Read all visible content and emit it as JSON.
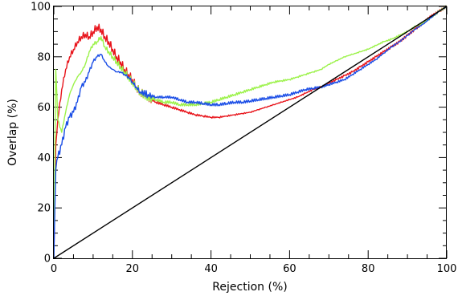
{
  "chart_data": {
    "type": "line",
    "xlabel": "Rejection (%)",
    "ylabel": "Overlap (%)",
    "xlim": [
      0,
      100
    ],
    "ylim": [
      0,
      100
    ],
    "x_ticks": [
      0,
      20,
      40,
      60,
      80,
      100
    ],
    "y_ticks": [
      0,
      20,
      40,
      60,
      80,
      100
    ],
    "x_tick_labels": [
      "0",
      "20",
      "40",
      "60",
      "80",
      "100"
    ],
    "y_tick_labels": [
      "0",
      "20",
      "40",
      "60",
      "80",
      "100"
    ],
    "grid": false,
    "legend": "none",
    "series": [
      {
        "color": "#e8141b",
        "x": [
          0,
          0.5,
          1,
          2,
          3,
          4,
          5,
          6,
          7,
          8,
          9,
          10,
          11,
          12,
          13,
          14,
          15,
          16,
          17,
          18,
          19,
          20,
          21,
          22,
          24,
          26,
          28,
          30,
          32,
          34,
          36,
          38,
          40,
          42,
          44,
          46,
          48,
          50,
          52,
          54,
          56,
          58,
          60,
          62,
          64,
          66,
          68,
          70,
          72,
          74,
          76,
          78,
          80,
          82,
          84,
          86,
          88,
          90,
          92,
          94,
          96,
          98,
          100
        ],
        "y": [
          0,
          45,
          55,
          67,
          75,
          80,
          83,
          86,
          88,
          89,
          88,
          90,
          92,
          91,
          88,
          86,
          83,
          80,
          78,
          75,
          73,
          71,
          68,
          66,
          64,
          62,
          61,
          60,
          59,
          58,
          57,
          56.5,
          56,
          56,
          56.5,
          57,
          57.5,
          58,
          59,
          60,
          61,
          62,
          63,
          64,
          65.5,
          67,
          68,
          69.5,
          71,
          72.5,
          74,
          76,
          78,
          80,
          82,
          84,
          86,
          88.5,
          91,
          93.5,
          96,
          98,
          100
        ]
      },
      {
        "color": "#9cf24a",
        "x": [
          0,
          0.5,
          1,
          2,
          3,
          4,
          5,
          6,
          7,
          8,
          9,
          10,
          11,
          12,
          13,
          14,
          15,
          16,
          17,
          18,
          19,
          20,
          21,
          22,
          24,
          26,
          28,
          30,
          32,
          34,
          36,
          38,
          40,
          42,
          44,
          46,
          48,
          50,
          52,
          54,
          56,
          58,
          60,
          62,
          64,
          66,
          68,
          70,
          72,
          74,
          76,
          78,
          80,
          82,
          84,
          86,
          88,
          90,
          92,
          94,
          96,
          98,
          100
        ],
        "y": [
          0,
          75,
          55,
          50,
          58,
          65,
          69,
          72,
          74,
          77,
          82,
          85,
          86,
          88,
          84,
          82,
          80,
          78,
          76,
          74,
          72,
          70,
          68,
          66,
          64,
          63,
          62,
          62,
          61,
          61,
          61,
          61.5,
          62,
          63,
          64,
          65,
          66,
          67,
          68,
          69,
          70,
          70.5,
          71,
          72,
          73,
          74,
          75,
          77,
          78.5,
          80,
          81,
          82,
          83,
          84.5,
          86,
          87,
          88.5,
          90,
          92,
          93.5,
          95.5,
          98,
          100
        ]
      },
      {
        "color": "#1a4de6",
        "x": [
          0,
          0.5,
          1,
          2,
          3,
          4,
          5,
          6,
          7,
          8,
          9,
          10,
          11,
          12,
          13,
          14,
          15,
          16,
          17,
          18,
          19,
          20,
          21,
          22,
          24,
          26,
          28,
          30,
          32,
          34,
          36,
          38,
          40,
          42,
          44,
          46,
          48,
          50,
          52,
          54,
          56,
          58,
          60,
          62,
          64,
          66,
          68,
          70,
          72,
          74,
          76,
          78,
          80,
          82,
          84,
          86,
          88,
          90,
          92,
          94,
          96,
          98,
          100
        ],
        "y": [
          0,
          35,
          40,
          45,
          52,
          56,
          58,
          62,
          68,
          70,
          74,
          78,
          80,
          81,
          78,
          76,
          75,
          74,
          74,
          73,
          72,
          70,
          68,
          66,
          65,
          64,
          64,
          64,
          63,
          62,
          62,
          61.5,
          61,
          61,
          61.5,
          62,
          62,
          62.5,
          63,
          63.5,
          64,
          64.5,
          65,
          66,
          67,
          67.5,
          68,
          69,
          70,
          71,
          73,
          75,
          77,
          79,
          81.5,
          84,
          86,
          88.5,
          91,
          93,
          95.5,
          98,
          100
        ]
      },
      {
        "color": "#000000",
        "x": [
          0,
          100
        ],
        "y": [
          0,
          100
        ]
      }
    ]
  }
}
